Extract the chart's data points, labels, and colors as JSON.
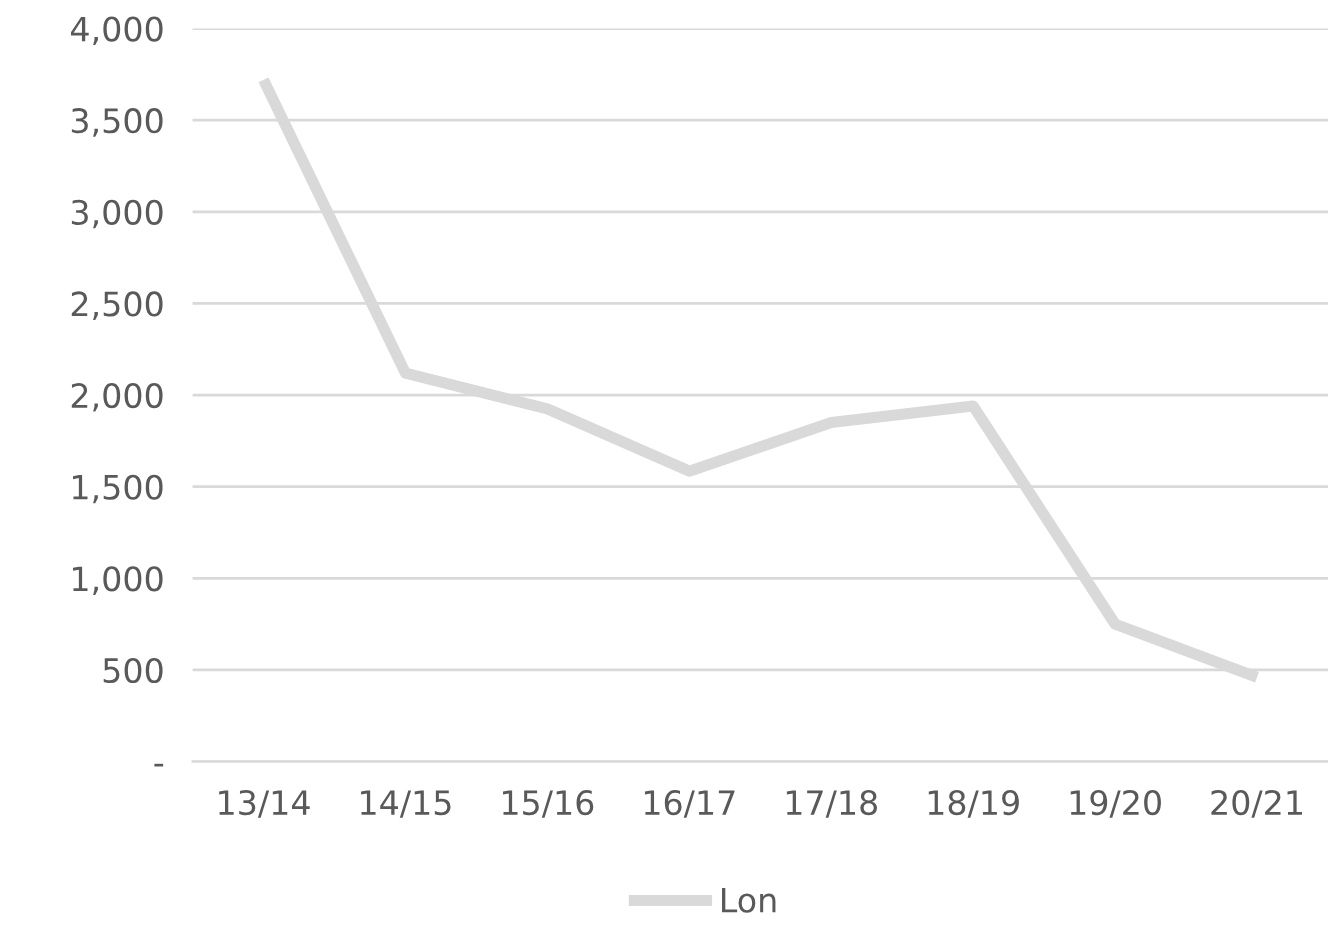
{
  "chart_data": {
    "type": "line",
    "categories": [
      "13/14",
      "14/15",
      "15/16",
      "16/17",
      "17/18",
      "18/19",
      "19/20",
      "20/21"
    ],
    "series": [
      {
        "name": "Lon",
        "color": "#d9d9d9",
        "values": [
          3720,
          2120,
          1925,
          1585,
          1850,
          1940,
          750,
          460
        ]
      }
    ],
    "ylim": [
      0,
      4000
    ],
    "yticks": [
      {
        "value": 0,
        "label": "-"
      },
      {
        "value": 500,
        "label": "500"
      },
      {
        "value": 1000,
        "label": "1,000"
      },
      {
        "value": 1500,
        "label": "1,500"
      },
      {
        "value": 2000,
        "label": "2,000"
      },
      {
        "value": 2500,
        "label": "2,500"
      },
      {
        "value": 3000,
        "label": "3,000"
      },
      {
        "value": 3500,
        "label": "3,500"
      },
      {
        "value": 4000,
        "label": "4,000"
      }
    ],
    "grid": "y",
    "legend": "bottom",
    "marker": "none",
    "line_style": "solid"
  }
}
